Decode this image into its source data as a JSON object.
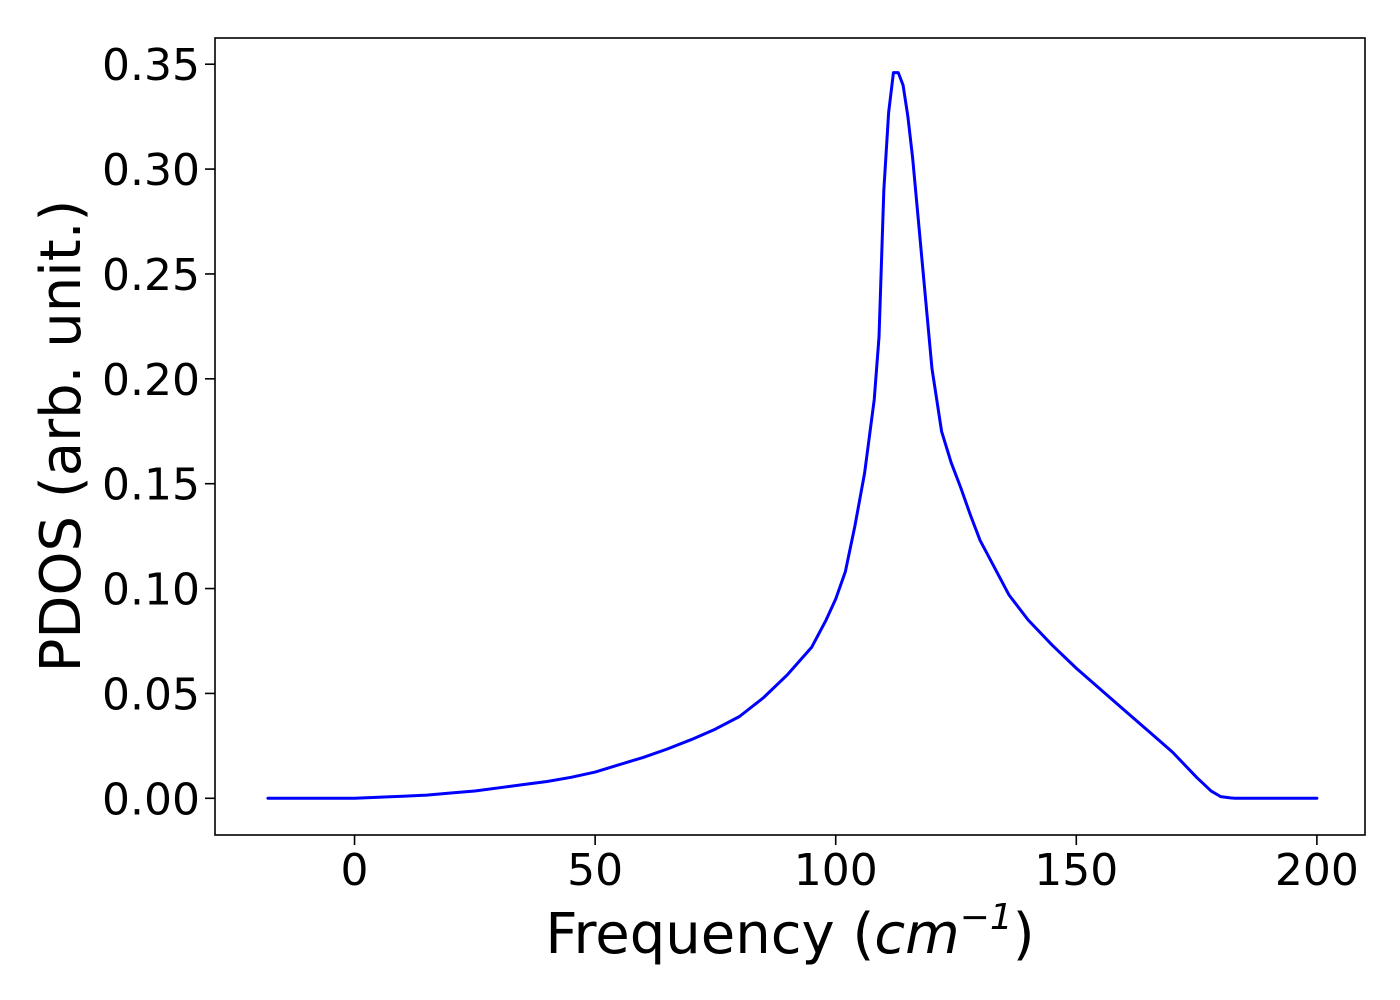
{
  "chart_data": {
    "type": "line",
    "title": "",
    "xlabel": "Frequency (cm⁻¹)",
    "xlabel_parts": {
      "prefix": "Frequency (",
      "unit": "cm",
      "exponent": "−1",
      "suffix": ")"
    },
    "ylabel": "PDOS (arb. unit.)",
    "xlim": [
      -29,
      210
    ],
    "ylim": [
      -0.0175,
      0.3625
    ],
    "xticks": [
      0,
      50,
      100,
      150,
      200
    ],
    "xtick_labels": [
      "0",
      "50",
      "100",
      "150",
      "200"
    ],
    "yticks": [
      0.0,
      0.05,
      0.1,
      0.15,
      0.2,
      0.25,
      0.3,
      0.35
    ],
    "ytick_labels": [
      "0.00",
      "0.05",
      "0.10",
      "0.15",
      "0.20",
      "0.25",
      "0.30",
      "0.35"
    ],
    "grid": false,
    "series": [
      {
        "color": "#0000ff",
        "x": [
          -18,
          -10,
          0,
          5,
          10,
          15,
          20,
          25,
          30,
          35,
          40,
          45,
          50,
          55,
          60,
          65,
          70,
          75,
          80,
          85,
          90,
          95,
          98,
          100,
          102,
          104,
          106,
          108,
          109,
          110,
          111,
          112,
          113,
          114,
          115,
          116,
          117,
          118,
          119,
          120,
          122,
          124,
          126,
          128,
          130,
          133,
          136,
          140,
          145,
          150,
          155,
          160,
          165,
          170,
          175,
          178,
          180,
          182,
          183,
          185,
          190,
          200
        ],
        "y": [
          0.0,
          0.0,
          0.0,
          0.0005,
          0.001,
          0.0015,
          0.0025,
          0.0035,
          0.005,
          0.0065,
          0.008,
          0.01,
          0.0125,
          0.016,
          0.0195,
          0.0235,
          0.028,
          0.033,
          0.039,
          0.048,
          0.059,
          0.072,
          0.085,
          0.095,
          0.108,
          0.13,
          0.155,
          0.19,
          0.22,
          0.29,
          0.327,
          0.346,
          0.346,
          0.34,
          0.325,
          0.305,
          0.28,
          0.255,
          0.23,
          0.205,
          0.175,
          0.16,
          0.148,
          0.135,
          0.123,
          0.11,
          0.097,
          0.085,
          0.073,
          0.062,
          0.052,
          0.042,
          0.032,
          0.022,
          0.01,
          0.0035,
          0.0008,
          0.0002,
          0.0,
          0.0,
          0.0,
          0.0
        ]
      }
    ]
  }
}
